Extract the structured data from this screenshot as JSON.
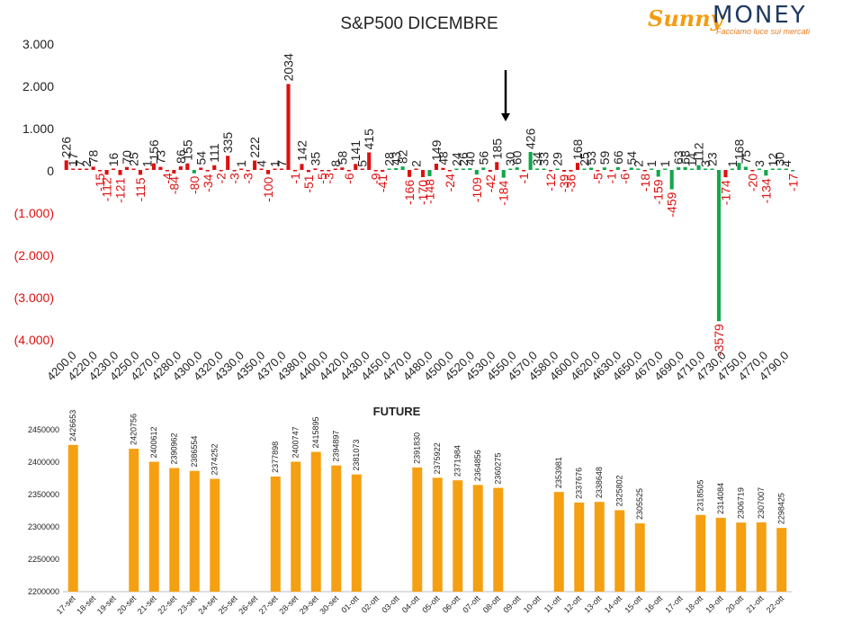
{
  "logo": {
    "sunny": "Sunny",
    "money": "MONEY",
    "tagline": "Facciamo luce sui mercati"
  },
  "colors": {
    "positive": "#dd1111",
    "negative": "#11a84a",
    "future_bar": "#f5a012",
    "neg_axis_label": "#dd1111",
    "text": "#222222"
  },
  "chart_data": [
    {
      "type": "bar",
      "title": "S&P500 DICEMBRE",
      "ylim": [
        -4000,
        3000
      ],
      "y_ticks": [
        {
          "value": 3000,
          "label": "3.000"
        },
        {
          "value": 2000,
          "label": "2.000"
        },
        {
          "value": 1000,
          "label": "1.000"
        },
        {
          "value": 0,
          "label": "0"
        },
        {
          "value": -1000,
          "label": "(1.000)"
        },
        {
          "value": -2000,
          "label": "(2.000)"
        },
        {
          "value": -3000,
          "label": "(3.000)"
        },
        {
          "value": -4000,
          "label": "(4.000)"
        }
      ],
      "x_ticks": [
        "4200,0",
        "4220,0",
        "4230,0",
        "4250,0",
        "4270,0",
        "4280,0",
        "4300,0",
        "4320,0",
        "4330,0",
        "4350,0",
        "4370,0",
        "4380,0",
        "4400,0",
        "4420,0",
        "4430,0",
        "4450,0",
        "4470,0",
        "4480,0",
        "4500,0",
        "4520,0",
        "4530,0",
        "4550,0",
        "4570,0",
        "4580,0",
        "4600,0",
        "4620,0",
        "4630,0",
        "4650,0",
        "4670,0",
        "4690,0",
        "4710,0",
        "4730,0",
        "4750,0",
        "4770,0",
        "4790,0"
      ],
      "bars": [
        {
          "v": 226,
          "c": "red"
        },
        {
          "v": 17,
          "c": "red"
        },
        {
          "v": 7,
          "c": "red"
        },
        {
          "v": 2,
          "c": "red"
        },
        {
          "v": 78,
          "c": "red"
        },
        {
          "v": -15,
          "c": "red"
        },
        {
          "v": -112,
          "c": "red"
        },
        {
          "v": 16,
          "c": "red"
        },
        {
          "v": -121,
          "c": "red"
        },
        {
          "v": 70,
          "c": "red"
        },
        {
          "v": 25,
          "c": "red"
        },
        {
          "v": -115,
          "c": "red"
        },
        {
          "v": 1,
          "c": "red"
        },
        {
          "v": 156,
          "c": "red"
        },
        {
          "v": 73,
          "c": "red"
        },
        {
          "v": -4,
          "c": "red"
        },
        {
          "v": -84,
          "c": "red"
        },
        {
          "v": 86,
          "c": "red"
        },
        {
          "v": 155,
          "c": "red"
        },
        {
          "v": -80,
          "c": "green"
        },
        {
          "v": 54,
          "c": "red"
        },
        {
          "v": -34,
          "c": "red"
        },
        {
          "v": 111,
          "c": "red"
        },
        {
          "v": -2,
          "c": "red"
        },
        {
          "v": 335,
          "c": "red"
        },
        {
          "v": -3,
          "c": "red"
        },
        {
          "v": 1,
          "c": "red"
        },
        {
          "v": -3,
          "c": "red"
        },
        {
          "v": 222,
          "c": "red"
        },
        {
          "v": 4,
          "c": "red"
        },
        {
          "v": -100,
          "c": "red"
        },
        {
          "v": 1,
          "c": "red"
        },
        {
          "v": 7,
          "c": "red"
        },
        {
          "v": 2034,
          "c": "red"
        },
        {
          "v": -1,
          "c": "red"
        },
        {
          "v": 142,
          "c": "red"
        },
        {
          "v": -51,
          "c": "red"
        },
        {
          "v": 35,
          "c": "red"
        },
        {
          "v": -5,
          "c": "red"
        },
        {
          "v": -3,
          "c": "red"
        },
        {
          "v": 8,
          "c": "red"
        },
        {
          "v": 58,
          "c": "red"
        },
        {
          "v": -6,
          "c": "red"
        },
        {
          "v": 141,
          "c": "red"
        },
        {
          "v": 5,
          "c": "red"
        },
        {
          "v": 415,
          "c": "red"
        },
        {
          "v": -9,
          "c": "red"
        },
        {
          "v": -41,
          "c": "red"
        },
        {
          "v": 28,
          "c": "green"
        },
        {
          "v": 43,
          "c": "green"
        },
        {
          "v": 82,
          "c": "green"
        },
        {
          "v": -166,
          "c": "red"
        },
        {
          "v": 2,
          "c": "red"
        },
        {
          "v": -170,
          "c": "red"
        },
        {
          "v": -148,
          "c": "green"
        },
        {
          "v": 149,
          "c": "red"
        },
        {
          "v": 48,
          "c": "red"
        },
        {
          "v": -24,
          "c": "red"
        },
        {
          "v": 24,
          "c": "green"
        },
        {
          "v": 26,
          "c": "green"
        },
        {
          "v": 40,
          "c": "green"
        },
        {
          "v": -109,
          "c": "green"
        },
        {
          "v": 56,
          "c": "green"
        },
        {
          "v": -42,
          "c": "red"
        },
        {
          "v": 185,
          "c": "red"
        },
        {
          "v": -184,
          "c": "green"
        },
        {
          "v": 30,
          "c": "green"
        },
        {
          "v": 60,
          "c": "green"
        },
        {
          "v": -1,
          "c": "red"
        },
        {
          "v": 426,
          "c": "green"
        },
        {
          "v": 34,
          "c": "green"
        },
        {
          "v": 33,
          "c": "green"
        },
        {
          "v": -12,
          "c": "red"
        },
        {
          "v": 29,
          "c": "green"
        },
        {
          "v": -39,
          "c": "red"
        },
        {
          "v": -36,
          "c": "red"
        },
        {
          "v": 168,
          "c": "red"
        },
        {
          "v": 25,
          "c": "green"
        },
        {
          "v": 53,
          "c": "green"
        },
        {
          "v": -5,
          "c": "red"
        },
        {
          "v": 59,
          "c": "green"
        },
        {
          "v": -1,
          "c": "red"
        },
        {
          "v": 66,
          "c": "green"
        },
        {
          "v": -6,
          "c": "red"
        },
        {
          "v": 54,
          "c": "green"
        },
        {
          "v": 2,
          "c": "green"
        },
        {
          "v": -18,
          "c": "red"
        },
        {
          "v": 1,
          "c": "green"
        },
        {
          "v": -159,
          "c": "green"
        },
        {
          "v": 1,
          "c": "green"
        },
        {
          "v": -459,
          "c": "green"
        },
        {
          "v": 63,
          "c": "green"
        },
        {
          "v": 68,
          "c": "green"
        },
        {
          "v": 14,
          "c": "green"
        },
        {
          "v": 112,
          "c": "green"
        },
        {
          "v": 3,
          "c": "green"
        },
        {
          "v": 23,
          "c": "green"
        },
        {
          "v": -3579,
          "c": "green"
        },
        {
          "v": -174,
          "c": "red"
        },
        {
          "v": 1,
          "c": "green"
        },
        {
          "v": 168,
          "c": "green"
        },
        {
          "v": 75,
          "c": "green"
        },
        {
          "v": -20,
          "c": "red"
        },
        {
          "v": 3,
          "c": "green"
        },
        {
          "v": -134,
          "c": "green"
        },
        {
          "v": 12,
          "c": "green"
        },
        {
          "v": 30,
          "c": "green"
        },
        {
          "v": 4,
          "c": "green"
        },
        {
          "v": -17,
          "c": "green"
        }
      ]
    },
    {
      "type": "bar",
      "title": "FUTURE",
      "ylim": [
        2200000,
        2450000
      ],
      "y_ticks": [
        2200000,
        2250000,
        2300000,
        2350000,
        2400000,
        2450000
      ],
      "categories": [
        "17-set",
        "18-set",
        "19-set",
        "20-set",
        "21-set",
        "22-set",
        "23-set",
        "24-set",
        "25-set",
        "26-set",
        "27-set",
        "28-set",
        "29-set",
        "30-set",
        "01-ott",
        "02-ott",
        "03-ott",
        "04-ott",
        "05-ott",
        "06-ott",
        "07-ott",
        "08-ott",
        "09-ott",
        "10-ott",
        "11-ott",
        "12-ott",
        "13-ott",
        "14-ott",
        "15-ott",
        "16-ott",
        "17-ott",
        "18-ott",
        "19-ott",
        "20-ott",
        "21-ott",
        "22-ott"
      ],
      "values": [
        2426653,
        null,
        null,
        2420756,
        2400612,
        2390962,
        2386554,
        2374252,
        null,
        null,
        2377898,
        2400747,
        2415895,
        2394897,
        2381073,
        null,
        null,
        2391830,
        2375922,
        2371984,
        2364856,
        2360275,
        null,
        null,
        2353981,
        2337676,
        2338648,
        2325802,
        2305525,
        null,
        null,
        2318505,
        2314084,
        2306719,
        2307007,
        2298425
      ]
    }
  ]
}
